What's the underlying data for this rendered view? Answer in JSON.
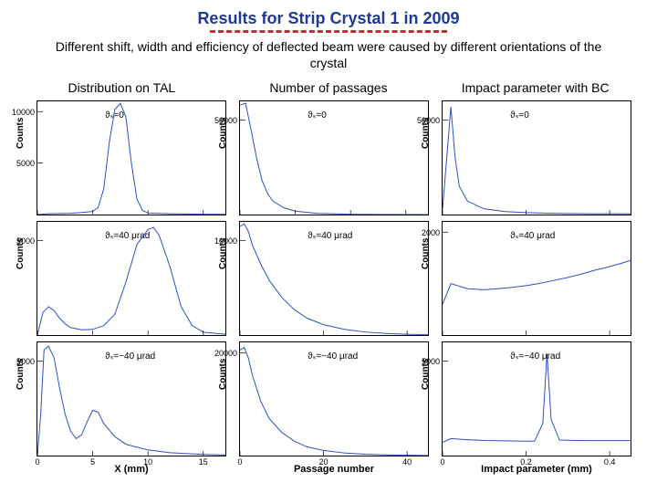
{
  "title": "Results for Strip Crystal 1 in 2009",
  "title_color": "#1f3b8f",
  "underline_color": "#c03030",
  "subtitle": "Different shift, width and efficiency of deflected beam were caused by different orientations of the crystal",
  "columns": [
    {
      "header": "Distribution on TAL",
      "xlabel": "X (mm)"
    },
    {
      "header": "Number of passages",
      "xlabel": "Passage number"
    },
    {
      "header": "Impact parameter with BC",
      "xlabel": "Impact parameter (mm)"
    }
  ],
  "ylabel": "Counts",
  "line_color": "#3050c0",
  "panels": [
    {
      "anno": "ϑₛ=0",
      "xlim": [
        0,
        17
      ],
      "ylim": [
        0,
        11000
      ],
      "xticks": [
        0,
        5,
        10,
        15
      ],
      "yticks": [
        {
          "v": 5000,
          "l": "5000"
        },
        {
          "v": 10000,
          "l": "10000"
        }
      ],
      "series": [
        [
          0,
          0
        ],
        [
          1,
          80
        ],
        [
          2,
          100
        ],
        [
          3,
          120
        ],
        [
          4,
          200
        ],
        [
          5,
          300
        ],
        [
          5.5,
          700
        ],
        [
          6,
          2500
        ],
        [
          6.5,
          7000
        ],
        [
          7,
          10200
        ],
        [
          7.5,
          10800
        ],
        [
          8,
          9500
        ],
        [
          8.5,
          5000
        ],
        [
          9,
          1500
        ],
        [
          9.5,
          400
        ],
        [
          10,
          150
        ],
        [
          12,
          80
        ],
        [
          15,
          30
        ],
        [
          17,
          20
        ]
      ]
    },
    {
      "anno": "ϑₛ=0",
      "xlim": [
        0,
        17
      ],
      "ylim": [
        0,
        60000
      ],
      "xticks": [
        0,
        5,
        10,
        15
      ],
      "yticks": [
        {
          "v": 50000,
          "l": "50000"
        }
      ],
      "series": [
        [
          0,
          58000
        ],
        [
          0.5,
          59000
        ],
        [
          1,
          45000
        ],
        [
          1.5,
          30000
        ],
        [
          2,
          18000
        ],
        [
          2.5,
          11000
        ],
        [
          3,
          7000
        ],
        [
          4,
          3500
        ],
        [
          5,
          1800
        ],
        [
          7,
          600
        ],
        [
          10,
          150
        ],
        [
          15,
          30
        ],
        [
          17,
          10
        ]
      ]
    },
    {
      "anno": "ϑₛ=0",
      "xlim": [
        0,
        0.45
      ],
      "ylim": [
        0,
        60000
      ],
      "xticks": [
        0,
        0.2,
        0.4
      ],
      "yticks": [
        {
          "v": 50000,
          "l": "50000"
        }
      ],
      "series": [
        [
          0,
          3000
        ],
        [
          0.02,
          57000
        ],
        [
          0.03,
          30000
        ],
        [
          0.04,
          15000
        ],
        [
          0.06,
          7000
        ],
        [
          0.1,
          3000
        ],
        [
          0.15,
          1600
        ],
        [
          0.2,
          1000
        ],
        [
          0.25,
          700
        ],
        [
          0.3,
          550
        ],
        [
          0.35,
          450
        ],
        [
          0.4,
          400
        ],
        [
          0.45,
          380
        ]
      ]
    },
    {
      "anno": "ϑₛ=40 μrad",
      "xlim": [
        0,
        17
      ],
      "ylim": [
        0,
        6000
      ],
      "xticks": [
        0,
        5,
        10,
        15
      ],
      "yticks": [
        {
          "v": 5000,
          "l": "5000"
        }
      ],
      "series": [
        [
          0,
          0
        ],
        [
          0.5,
          1200
        ],
        [
          1,
          1500
        ],
        [
          1.5,
          1300
        ],
        [
          2,
          900
        ],
        [
          2.5,
          600
        ],
        [
          3,
          400
        ],
        [
          4,
          280
        ],
        [
          5,
          300
        ],
        [
          6,
          500
        ],
        [
          7,
          1100
        ],
        [
          8,
          2800
        ],
        [
          9,
          4800
        ],
        [
          10,
          5600
        ],
        [
          10.5,
          5700
        ],
        [
          11,
          5300
        ],
        [
          12,
          3600
        ],
        [
          13,
          1500
        ],
        [
          14,
          500
        ],
        [
          15,
          150
        ],
        [
          17,
          40
        ]
      ]
    },
    {
      "anno": "ϑₛ=40 μrad",
      "xlim": [
        0,
        45
      ],
      "ylim": [
        0,
        12000
      ],
      "xticks": [
        0,
        20,
        40
      ],
      "yticks": [
        {
          "v": 10000,
          "l": "10000"
        }
      ],
      "series": [
        [
          0,
          11500
        ],
        [
          1,
          11800
        ],
        [
          2,
          11000
        ],
        [
          3,
          9500
        ],
        [
          5,
          7500
        ],
        [
          7,
          5800
        ],
        [
          10,
          4000
        ],
        [
          13,
          2700
        ],
        [
          16,
          1800
        ],
        [
          20,
          1100
        ],
        [
          25,
          600
        ],
        [
          30,
          320
        ],
        [
          35,
          170
        ],
        [
          40,
          80
        ],
        [
          45,
          40
        ]
      ]
    },
    {
      "anno": "ϑₛ=40 μrad",
      "xlim": [
        0,
        0.45
      ],
      "ylim": [
        0,
        2200
      ],
      "xticks": [
        0,
        0.2,
        0.4
      ],
      "yticks": [
        {
          "v": 2000,
          "l": "2000"
        }
      ],
      "series": [
        [
          0,
          600
        ],
        [
          0.02,
          1000
        ],
        [
          0.04,
          950
        ],
        [
          0.06,
          900
        ],
        [
          0.1,
          880
        ],
        [
          0.13,
          900
        ],
        [
          0.16,
          920
        ],
        [
          0.2,
          960
        ],
        [
          0.23,
          1000
        ],
        [
          0.26,
          1050
        ],
        [
          0.3,
          1120
        ],
        [
          0.33,
          1180
        ],
        [
          0.36,
          1250
        ],
        [
          0.4,
          1330
        ],
        [
          0.43,
          1400
        ],
        [
          0.45,
          1450
        ]
      ]
    },
    {
      "anno": "ϑₛ=−40 μrad",
      "xlim": [
        0,
        17
      ],
      "ylim": [
        0,
        6000
      ],
      "xticks": [
        0,
        5,
        10,
        15
      ],
      "yticks": [
        {
          "v": 5000,
          "l": "5000"
        }
      ],
      "series": [
        [
          0,
          0
        ],
        [
          0.3,
          2200
        ],
        [
          0.6,
          5600
        ],
        [
          1,
          5800
        ],
        [
          1.5,
          5200
        ],
        [
          2,
          3600
        ],
        [
          2.5,
          2200
        ],
        [
          3,
          1300
        ],
        [
          3.5,
          900
        ],
        [
          4,
          1100
        ],
        [
          4.5,
          1800
        ],
        [
          5,
          2400
        ],
        [
          5.5,
          2300
        ],
        [
          6,
          1700
        ],
        [
          7,
          1000
        ],
        [
          8,
          600
        ],
        [
          10,
          300
        ],
        [
          12,
          150
        ],
        [
          15,
          60
        ],
        [
          17,
          30
        ]
      ]
    },
    {
      "anno": "ϑₛ=−40 μrad",
      "xlim": [
        0,
        45
      ],
      "ylim": [
        0,
        22000
      ],
      "xticks": [
        0,
        20,
        40
      ],
      "yticks": [
        {
          "v": 20000,
          "l": "20000"
        }
      ],
      "series": [
        [
          0,
          20500
        ],
        [
          1,
          21000
        ],
        [
          2,
          19000
        ],
        [
          3,
          15500
        ],
        [
          5,
          10500
        ],
        [
          7,
          7200
        ],
        [
          10,
          4500
        ],
        [
          13,
          2800
        ],
        [
          16,
          1700
        ],
        [
          20,
          1000
        ],
        [
          25,
          500
        ],
        [
          30,
          260
        ],
        [
          35,
          130
        ],
        [
          40,
          60
        ],
        [
          45,
          30
        ]
      ]
    },
    {
      "anno": "ϑₛ=−40 μrad",
      "xlim": [
        0,
        0.45
      ],
      "ylim": [
        0,
        6000
      ],
      "xticks": [
        0,
        0.2,
        0.4
      ],
      "yticks": [
        {
          "v": 5000,
          "l": "5000"
        }
      ],
      "series": [
        [
          0,
          700
        ],
        [
          0.02,
          900
        ],
        [
          0.05,
          850
        ],
        [
          0.1,
          800
        ],
        [
          0.15,
          780
        ],
        [
          0.2,
          760
        ],
        [
          0.22,
          760
        ],
        [
          0.24,
          1700
        ],
        [
          0.25,
          5400
        ],
        [
          0.26,
          1900
        ],
        [
          0.28,
          820
        ],
        [
          0.32,
          800
        ],
        [
          0.36,
          790
        ],
        [
          0.4,
          790
        ],
        [
          0.45,
          790
        ]
      ]
    }
  ]
}
